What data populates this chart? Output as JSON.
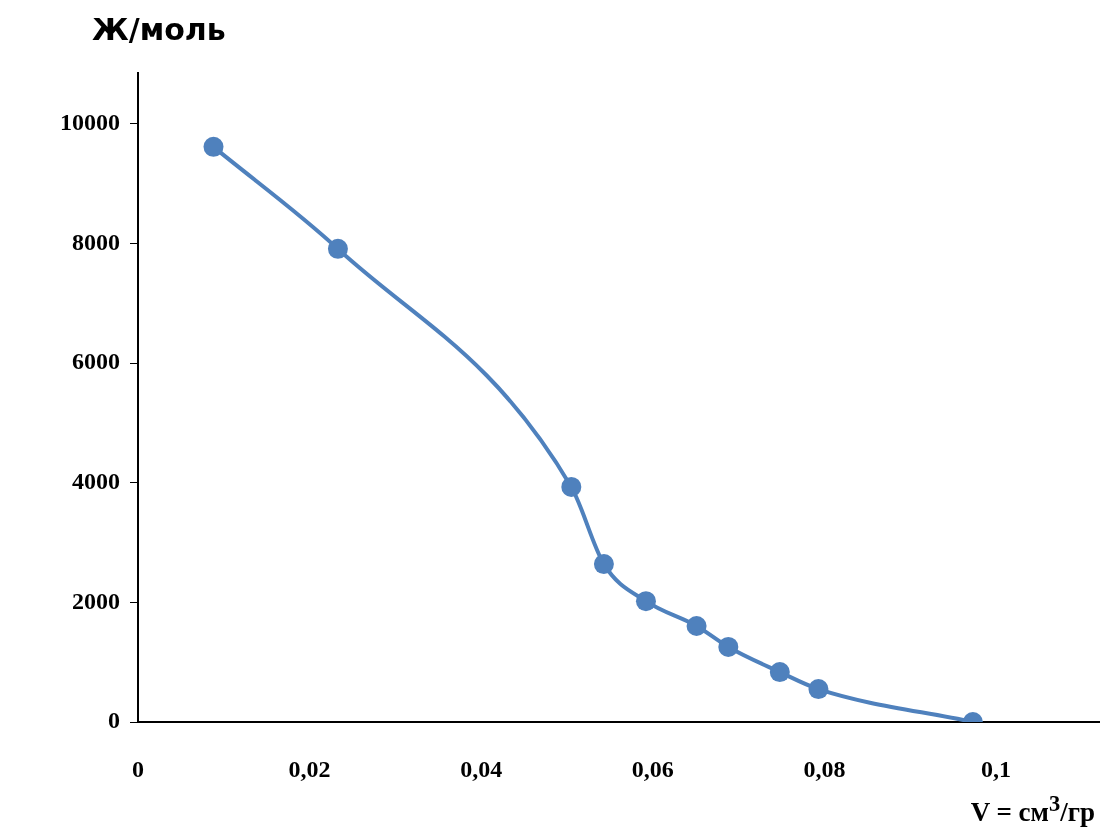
{
  "chart_data": {
    "type": "line",
    "ylabel": "Ж/моль",
    "xlabel": "V = см$^{3}$/гр",
    "x": [
      0.0088,
      0.0233,
      0.0505,
      0.0543,
      0.0592,
      0.0651,
      0.0688,
      0.0748,
      0.0793,
      0.0973
    ],
    "series": [
      {
        "color": "#4f81bd",
        "values": [
          9615,
          7910,
          3930,
          2640,
          2020,
          1605,
          1255,
          835,
          550,
          0
        ]
      }
    ],
    "xlim": [
      0,
      0.112
    ],
    "xticks": [
      0,
      {
        "value": 0.02,
        "label": "0,02"
      },
      {
        "value": 0.04,
        "label": "0,04"
      },
      {
        "value": 0.06,
        "label": "0,06"
      },
      {
        "value": 0.08,
        "label": "0,08"
      },
      {
        "value": 0.1,
        "label": "0,1"
      }
    ],
    "ylim": [
      0,
      10850
    ],
    "yticks": [
      0,
      2000,
      4000,
      6000,
      8000,
      10000
    ],
    "grid": false,
    "legend": false,
    "marker": "circle",
    "line_style": "solid"
  }
}
